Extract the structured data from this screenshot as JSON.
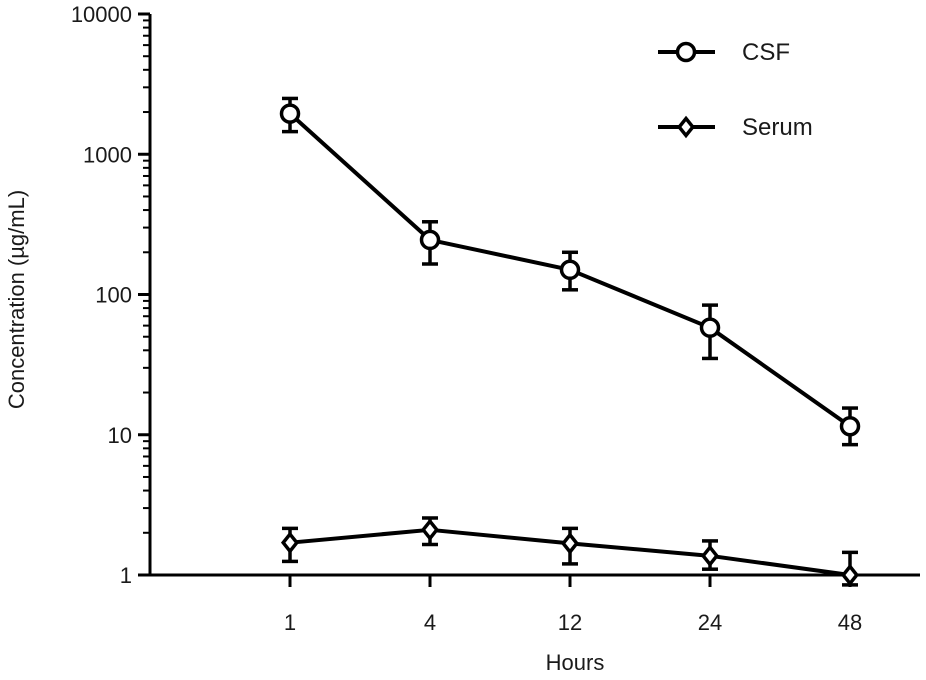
{
  "chart_data": {
    "type": "line",
    "xlabel": "Hours",
    "ylabel": "Concentration (µg/mL)",
    "categories": [
      "1",
      "4",
      "12",
      "24",
      "48"
    ],
    "yscale": "log",
    "ylim": [
      1,
      10000
    ],
    "yticks": [
      "1",
      "10",
      "100",
      "1000",
      "10000"
    ],
    "legend_position": "top-right",
    "grid": false,
    "series": [
      {
        "name": "CSF",
        "marker": "circle",
        "values": [
          1950,
          245,
          150,
          58,
          11.5
        ],
        "error_low": [
          1450,
          165,
          108,
          35,
          8.5
        ],
        "error_high": [
          2500,
          330,
          200,
          84,
          15.5
        ]
      },
      {
        "name": "Serum",
        "marker": "diamond",
        "values": [
          1.7,
          2.1,
          1.68,
          1.37,
          1.0
        ],
        "error_low": [
          1.25,
          1.65,
          1.2,
          1.1,
          0.85
        ],
        "error_high": [
          2.15,
          2.55,
          2.15,
          1.75,
          1.45
        ]
      }
    ],
    "colors": {
      "line": "#000000"
    }
  }
}
